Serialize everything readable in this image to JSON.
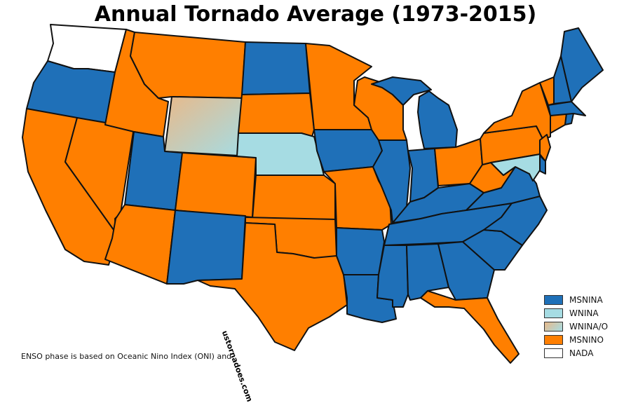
{
  "title": "Annual Tornado Average (1973-2015)",
  "watermark": "ustornadoes.com",
  "footnote": "ENSO phase is based on Oceanic Nino Index (ONI) and",
  "colors": {
    "MSNINA": "#1f70b8",
    "WNINA": "#a6dce3",
    "WNINA/O": "#d6c8a8",
    "MSNINO": "#ff7f00",
    "NADA": "#ffffff",
    "outline": "#111111"
  },
  "legend": [
    {
      "category": "MSNINA",
      "label": "MSNINA"
    },
    {
      "category": "WNINA",
      "label": "WNINA"
    },
    {
      "category": "WNINA/O",
      "label": "WNINA/O"
    },
    {
      "category": "MSNINO",
      "label": "MSNINO"
    },
    {
      "category": "NADA",
      "label": "NADA"
    }
  ],
  "state_categories": {
    "WA": "NADA",
    "OR": "MSNINA",
    "CA": "MSNINO",
    "NV": "MSNINO",
    "ID": "MSNINO",
    "MT": "MSNINO",
    "WY": "WNINA/O",
    "UT": "MSNINA",
    "CO": "MSNINO",
    "AZ": "MSNINO",
    "NM": "MSNINA",
    "ND": "MSNINA",
    "SD": "MSNINO",
    "NE": "WNINA",
    "KS": "MSNINO",
    "OK": "MSNINO",
    "TX": "MSNINO",
    "MN": "MSNINO",
    "IA": "MSNINA",
    "MO": "MSNINO",
    "AR": "MSNINA",
    "LA": "MSNINA",
    "WI": "MSNINO",
    "IL": "MSNINA",
    "MI": "MSNINA",
    "IN": "MSNINA",
    "OH": "MSNINO",
    "KY": "MSNINA",
    "TN": "MSNINA",
    "MS": "MSNINA",
    "AL": "MSNINA",
    "GA": "MSNINA",
    "FL": "MSNINO",
    "SC": "MSNINA",
    "NC": "MSNINA",
    "VA": "MSNINA",
    "WV": "MSNINO",
    "PA": "MSNINO",
    "NY": "MSNINO",
    "VT": "MSNINO",
    "NH": "MSNINA",
    "ME": "MSNINA",
    "MA": "MSNINA",
    "CT": "MSNINO",
    "RI": "MSNINA",
    "NJ": "MSNINO",
    "DE": "MSNINA",
    "MD": "WNINA"
  }
}
